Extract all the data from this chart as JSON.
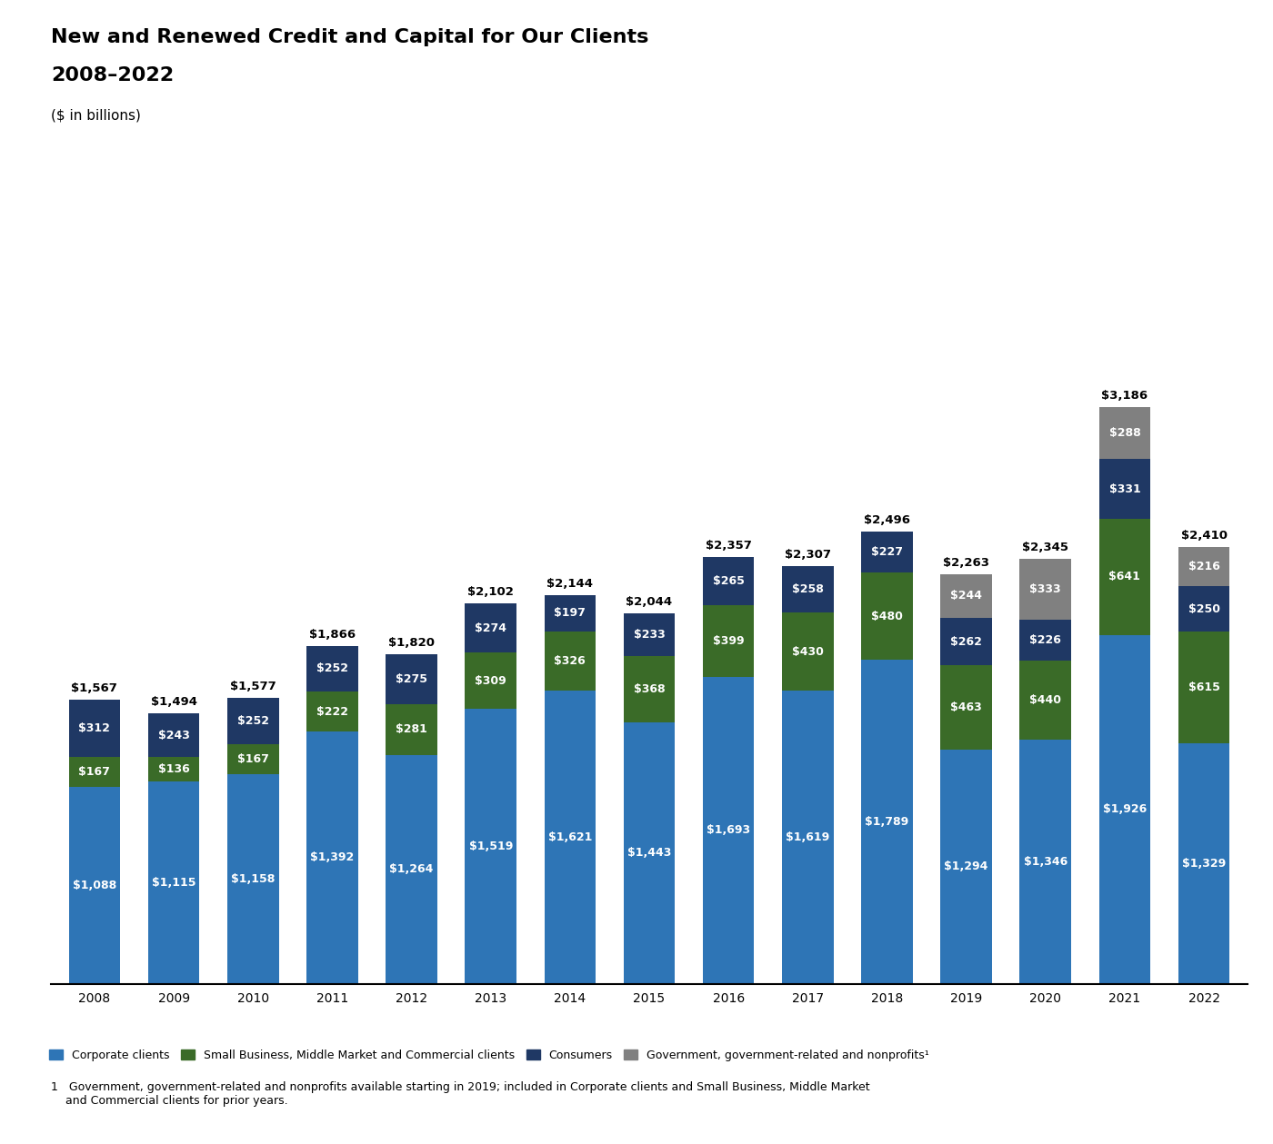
{
  "title_line1": "New and Renewed Credit and Capital for Our Clients",
  "title_line2": "2008–2022",
  "subtitle": "($ in billions)",
  "years": [
    2008,
    2009,
    2010,
    2011,
    2012,
    2013,
    2014,
    2015,
    2016,
    2017,
    2018,
    2019,
    2020,
    2021,
    2022
  ],
  "corporate": [
    1088,
    1115,
    1158,
    1392,
    1264,
    1519,
    1621,
    1443,
    1693,
    1619,
    1789,
    1294,
    1346,
    1926,
    1329
  ],
  "small_biz": [
    167,
    136,
    167,
    222,
    281,
    309,
    326,
    368,
    399,
    430,
    480,
    463,
    440,
    641,
    615
  ],
  "consumers": [
    312,
    243,
    252,
    252,
    275,
    274,
    197,
    233,
    265,
    258,
    227,
    262,
    226,
    331,
    250
  ],
  "government": [
    0,
    0,
    0,
    0,
    0,
    0,
    0,
    0,
    0,
    0,
    0,
    244,
    333,
    288,
    216
  ],
  "totals": [
    1567,
    1494,
    1577,
    1866,
    1820,
    2102,
    2144,
    2044,
    2357,
    2307,
    2496,
    2263,
    2345,
    3186,
    2410
  ],
  "color_corporate": "#2e75b6",
  "color_small_biz": "#3a6b28",
  "color_consumers": "#1f3864",
  "color_government": "#808080",
  "color_background": "#ffffff",
  "legend_labels": [
    "Corporate clients",
    "Small Business, Middle Market and Commercial clients",
    "Consumers",
    "Government, government-related and nonprofits¹"
  ],
  "footnote": "1   Government, government-related and nonprofits available starting in 2019; included in Corporate clients and Small Business, Middle Market\n    and Commercial clients for prior years.",
  "bar_label_fontsize": 9,
  "total_label_fontsize": 9.5,
  "axis_label_fontsize": 10
}
